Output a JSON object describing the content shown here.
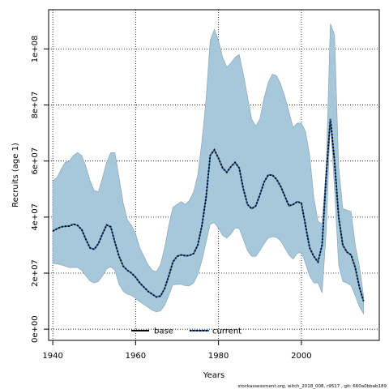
{
  "chart_data": {
    "type": "area",
    "xlabel": "Years",
    "ylabel": "Recruits (age 1)",
    "xlim": [
      1939,
      2018.8
    ],
    "ylim": [
      -4000000,
      114000000
    ],
    "x_ticks": [
      1940,
      1960,
      1980,
      2000
    ],
    "x_tick_labels": [
      "1940",
      "1960",
      "1980",
      "2000"
    ],
    "y_ticks": [
      0,
      20000000,
      40000000,
      60000000,
      80000000,
      100000000
    ],
    "y_tick_labels": [
      "0e+00",
      "2e+07",
      "4e+07",
      "6e+07",
      "8e+07",
      "1e+08"
    ],
    "grid": true,
    "legend_position": "bottom",
    "footer": "stockassessment.org, witch_2018_008, r9517 , git: 660a0bbab189",
    "colors": {
      "band": "#a6c8da",
      "band_edge": "#8aa7b8",
      "base_line": "#000000",
      "current_line": "#1a5fa8"
    },
    "x": [
      1940,
      1941,
      1942,
      1943,
      1944,
      1945,
      1946,
      1947,
      1948,
      1949,
      1950,
      1951,
      1952,
      1953,
      1954,
      1955,
      1956,
      1957,
      1958,
      1959,
      1960,
      1961,
      1962,
      1963,
      1964,
      1965,
      1966,
      1967,
      1968,
      1969,
      1970,
      1971,
      1972,
      1973,
      1974,
      1975,
      1976,
      1977,
      1978,
      1979,
      1980,
      1981,
      1982,
      1983,
      1984,
      1985,
      1986,
      1987,
      1988,
      1989,
      1990,
      1991,
      1992,
      1993,
      1994,
      1995,
      1996,
      1997,
      1998,
      1999,
      2000,
      2001,
      2002,
      2003,
      2004,
      2005,
      2006,
      2007,
      2008,
      2009,
      2010,
      2011,
      2012,
      2013,
      2014,
      2015
    ],
    "series": [
      {
        "name": "base",
        "style": "solid",
        "values": [
          35000000,
          35800000,
          36500000,
          36700000,
          36800000,
          37500000,
          37000000,
          35500000,
          32000000,
          29000000,
          28500000,
          30500000,
          34000000,
          37200000,
          36500000,
          31000000,
          26000000,
          22500000,
          21000000,
          20000000,
          18500000,
          16500000,
          15000000,
          13500000,
          12500000,
          11500000,
          11800000,
          14500000,
          19000000,
          24000000,
          26000000,
          26500000,
          26200000,
          26300000,
          27000000,
          30000000,
          37000000,
          47000000,
          62000000,
          64000000,
          61000000,
          57500000,
          56000000,
          58000000,
          59500000,
          57500000,
          50000000,
          44500000,
          43000000,
          44000000,
          48000000,
          52500000,
          55000000,
          55000000,
          53500000,
          51000000,
          47500000,
          44000000,
          44500000,
          45500000,
          45000000,
          37000000,
          29000000,
          26000000,
          24000000,
          30000000,
          55000000,
          75000000,
          60000000,
          40000000,
          30000000,
          27500000,
          26500000,
          22000000,
          15000000,
          10000000
        ]
      },
      {
        "name": "current",
        "style": "dotted",
        "values": [
          35000000,
          35800000,
          36500000,
          36700000,
          36800000,
          37500000,
          37000000,
          35500000,
          32000000,
          29000000,
          28500000,
          30500000,
          34000000,
          37200000,
          36500000,
          31000000,
          26000000,
          22500000,
          21000000,
          20000000,
          18500000,
          16500000,
          15000000,
          13500000,
          12500000,
          11500000,
          11800000,
          14500000,
          19000000,
          24000000,
          26000000,
          26500000,
          26200000,
          26300000,
          27000000,
          30000000,
          37000000,
          47000000,
          62000000,
          64000000,
          61000000,
          57500000,
          56000000,
          58000000,
          59500000,
          57500000,
          50000000,
          44500000,
          43000000,
          44000000,
          48000000,
          52500000,
          55000000,
          55000000,
          53500000,
          51000000,
          47500000,
          44000000,
          44500000,
          45500000,
          45000000,
          37000000,
          29000000,
          26000000,
          24000000,
          30000000,
          55000000,
          75000000,
          60000000,
          40000000,
          30000000,
          27500000,
          26500000,
          22000000,
          15000000,
          10000000
        ]
      }
    ],
    "band": {
      "upper": [
        53000000,
        54000000,
        57000000,
        59500000,
        60000000,
        62000000,
        63000000,
        62000000,
        58000000,
        53000000,
        49500000,
        49000000,
        54000000,
        59500000,
        63000000,
        63000000,
        54000000,
        45000000,
        39000000,
        37000000,
        34000000,
        29000000,
        26000000,
        23000000,
        21000000,
        20500000,
        23000000,
        29000000,
        37000000,
        43500000,
        44500000,
        45500000,
        44500000,
        46000000,
        49000000,
        55000000,
        67000000,
        82000000,
        103000000,
        107000000,
        103000000,
        97000000,
        93500000,
        95000000,
        97000000,
        98000000,
        91000000,
        83000000,
        75000000,
        72500000,
        75000000,
        82500000,
        88000000,
        91000000,
        90500000,
        87500000,
        83000000,
        77500000,
        72000000,
        73500000,
        73500000,
        70500000,
        62000000,
        47000000,
        38500000,
        37500000,
        58000000,
        109000000,
        105000000,
        58000000,
        43000000,
        42500000,
        42000000,
        30000000,
        22500000,
        12000000
      ],
      "lower": [
        23500000,
        23300000,
        23000000,
        22500000,
        22000000,
        22000000,
        22000000,
        21000000,
        19000000,
        17200000,
        16500000,
        17000000,
        19000000,
        21500000,
        22300000,
        21000000,
        16000000,
        13500000,
        12500000,
        12000000,
        11000000,
        9800000,
        8800000,
        7800000,
        6800000,
        6200000,
        6500000,
        8500000,
        12000000,
        15800000,
        16000000,
        16000000,
        15500000,
        15500000,
        16500000,
        19500000,
        24500000,
        31000000,
        37500000,
        38000000,
        36000000,
        33500000,
        32500000,
        34000000,
        36000000,
        36000000,
        32000000,
        28000000,
        26000000,
        26000000,
        28000000,
        30500000,
        32500000,
        33000000,
        32800000,
        31500000,
        29000000,
        26500000,
        25000000,
        27000000,
        27500000,
        23500000,
        19000000,
        16500000,
        16500000,
        13000000,
        35000000,
        75000000,
        50000000,
        23000000,
        17000000,
        16500000,
        15500000,
        12000000,
        8000000,
        5500000
      ]
    }
  },
  "legend": {
    "base_label": "base",
    "current_label": "current"
  },
  "axes": {
    "xlabel": "Years",
    "ylabel": "Recruits (age 1)"
  },
  "footer": {
    "text": "stockassessment.org, witch_2018_008, r9517 , git: 660a0bbab189"
  }
}
